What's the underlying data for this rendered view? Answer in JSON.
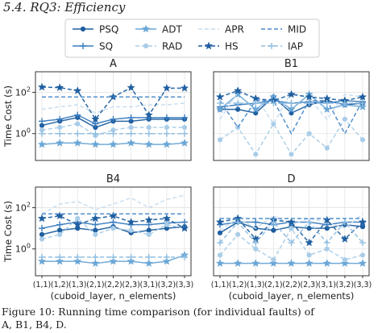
{
  "heading": "5.4.  RQ3: Efficiency",
  "caption": {
    "line1": "Figure 10:   Running time comparison (for individual faults) of",
    "line2": "A, B1, B4, D."
  },
  "colors": {
    "PSQ": "#1f5fa0",
    "SQ": "#3b7dbf",
    "ADT": "#6aa6d6",
    "RAD": "#a9cde8",
    "APR": "#c6dcef",
    "HS": "#1f5fa0",
    "MID": "#4a8ac8",
    "IAP": "#8fbde0"
  },
  "chart_data": {
    "type": "line",
    "legend": {
      "placement": "top",
      "entries": [
        {
          "name": "PSQ",
          "marker": "circle",
          "dash": "solid"
        },
        {
          "name": "ADT",
          "marker": "star",
          "dash": "solid"
        },
        {
          "name": "APR",
          "marker": "none",
          "dash": "dashed"
        },
        {
          "name": "MID",
          "marker": "none",
          "dash": "dashed"
        },
        {
          "name": "SQ",
          "marker": "plus",
          "dash": "solid"
        },
        {
          "name": "RAD",
          "marker": "circle",
          "dash": "dashed"
        },
        {
          "name": "HS",
          "marker": "star",
          "dash": "dashed"
        },
        {
          "name": "IAP",
          "marker": "plus",
          "dash": "dashed"
        }
      ]
    },
    "categories": [
      "(1,1)",
      "(1,2)",
      "(1,3)",
      "(2,1)",
      "(2,2)",
      "(2,3)",
      "(3,1)",
      "(3,2)",
      "(3,3)"
    ],
    "xlabel": "(cuboid_layer, n_elements)",
    "ylabel": "Time Cost (s)",
    "yscale": "log",
    "ylim": [
      0.05,
      1000
    ],
    "yticks": [
      {
        "value": 1,
        "label": "10^0"
      },
      {
        "value": 100,
        "label": "10^2"
      }
    ],
    "grid": true,
    "panels": [
      {
        "title": "A",
        "series": [
          {
            "name": "PSQ",
            "values": [
              2.5,
              4,
              6,
              2,
              4,
              4,
              5,
              5,
              5
            ]
          },
          {
            "name": "SQ",
            "values": [
              4,
              5,
              8,
              3,
              5,
              6,
              6,
              6,
              6
            ]
          },
          {
            "name": "ADT",
            "values": [
              0.3,
              0.35,
              0.35,
              0.3,
              0.3,
              0.35,
              0.3,
              0.3,
              0.35
            ]
          },
          {
            "name": "RAD",
            "values": [
              1.5,
              2,
              3,
              0.8,
              1.5,
              2,
              2,
              2,
              2
            ]
          },
          {
            "name": "APR",
            "values": [
              15,
              20,
              25,
              10,
              20,
              20,
              25,
              25,
              30
            ]
          },
          {
            "name": "HS",
            "values": [
              180,
              170,
              120,
              5,
              60,
              170,
              8,
              160,
              160
            ]
          },
          {
            "name": "MID",
            "values": [
              60,
              60,
              60,
              60,
              60,
              60,
              60,
              60,
              60
            ]
          },
          {
            "name": "IAP",
            "values": [
              1,
              1,
              1,
              1,
              1,
              1,
              1,
              1,
              1
            ]
          }
        ]
      },
      {
        "title": "B1",
        "series": [
          {
            "name": "PSQ",
            "values": [
              15,
              15,
              10,
              60,
              10,
              25,
              40,
              25,
              30
            ]
          },
          {
            "name": "SQ",
            "values": [
              20,
              25,
              30,
              40,
              30,
              35,
              30,
              40,
              35
            ]
          },
          {
            "name": "ADT",
            "values": [
              15,
              80,
              15,
              60,
              15,
              80,
              15,
              25,
              20
            ]
          },
          {
            "name": "RAD",
            "values": [
              0.5,
              2,
              0.1,
              3,
              0.1,
              1,
              0.2,
              5,
              0.5
            ]
          },
          {
            "name": "APR",
            "values": [
              5,
              100,
              60,
              3,
              100,
              50,
              5,
              80,
              60
            ]
          },
          {
            "name": "HS",
            "values": [
              60,
              120,
              50,
              40,
              80,
              60,
              50,
              40,
              60
            ]
          },
          {
            "name": "MID",
            "values": [
              40,
              2,
              40,
              40,
              1,
              40,
              40,
              1,
              40
            ]
          },
          {
            "name": "IAP",
            "values": [
              30,
              30,
              30,
              30,
              30,
              30,
              30,
              30,
              30
            ]
          }
        ]
      },
      {
        "title": "B4",
        "series": [
          {
            "name": "PSQ",
            "values": [
              5,
              8,
              10,
              8,
              12,
              6,
              8,
              10,
              12
            ]
          },
          {
            "name": "SQ",
            "values": [
              10,
              15,
              20,
              15,
              20,
              15,
              15,
              18,
              20
            ]
          },
          {
            "name": "ADT",
            "values": [
              0.25,
              0.25,
              0.25,
              0.2,
              0.25,
              0.25,
              0.2,
              0.25,
              0.5
            ]
          },
          {
            "name": "RAD",
            "values": [
              3,
              5,
              30,
              5,
              10,
              8,
              5,
              15,
              10
            ]
          },
          {
            "name": "APR",
            "values": [
              50,
              150,
              200,
              80,
              150,
              300,
              100,
              250,
              400
            ]
          },
          {
            "name": "HS",
            "values": [
              30,
              40,
              15,
              30,
              40,
              20,
              25,
              30,
              10
            ]
          },
          {
            "name": "MID",
            "values": [
              50,
              50,
              50,
              50,
              50,
              50,
              50,
              50,
              50
            ]
          },
          {
            "name": "IAP",
            "values": [
              0.4,
              0.4,
              0.4,
              0.4,
              0.4,
              0.4,
              0.4,
              0.4,
              0.4
            ]
          }
        ]
      },
      {
        "title": "D",
        "series": [
          {
            "name": "PSQ",
            "values": [
              6,
              20,
              10,
              8,
              12,
              10,
              10,
              15,
              12
            ]
          },
          {
            "name": "SQ",
            "values": [
              15,
              20,
              20,
              15,
              20,
              20,
              15,
              20,
              20
            ]
          },
          {
            "name": "ADT",
            "values": [
              0.2,
              0.2,
              0.2,
              0.2,
              0.2,
              0.2,
              0.2,
              0.2,
              0.2
            ]
          },
          {
            "name": "RAD",
            "values": [
              0.5,
              5,
              1,
              0.3,
              10,
              0.5,
              1,
              0.3,
              0.5
            ]
          },
          {
            "name": "APR",
            "values": [
              8,
              30,
              10,
              40,
              15,
              30,
              20,
              10,
              50
            ]
          },
          {
            "name": "HS",
            "values": [
              20,
              30,
              3,
              25,
              20,
              2,
              25,
              3,
              20
            ]
          },
          {
            "name": "MID",
            "values": [
              30,
              30,
              30,
              30,
              30,
              30,
              30,
              30,
              30
            ]
          },
          {
            "name": "IAP",
            "values": [
              2,
              20,
              2,
              20,
              2,
              20,
              2,
              20,
              2
            ]
          }
        ]
      }
    ]
  }
}
